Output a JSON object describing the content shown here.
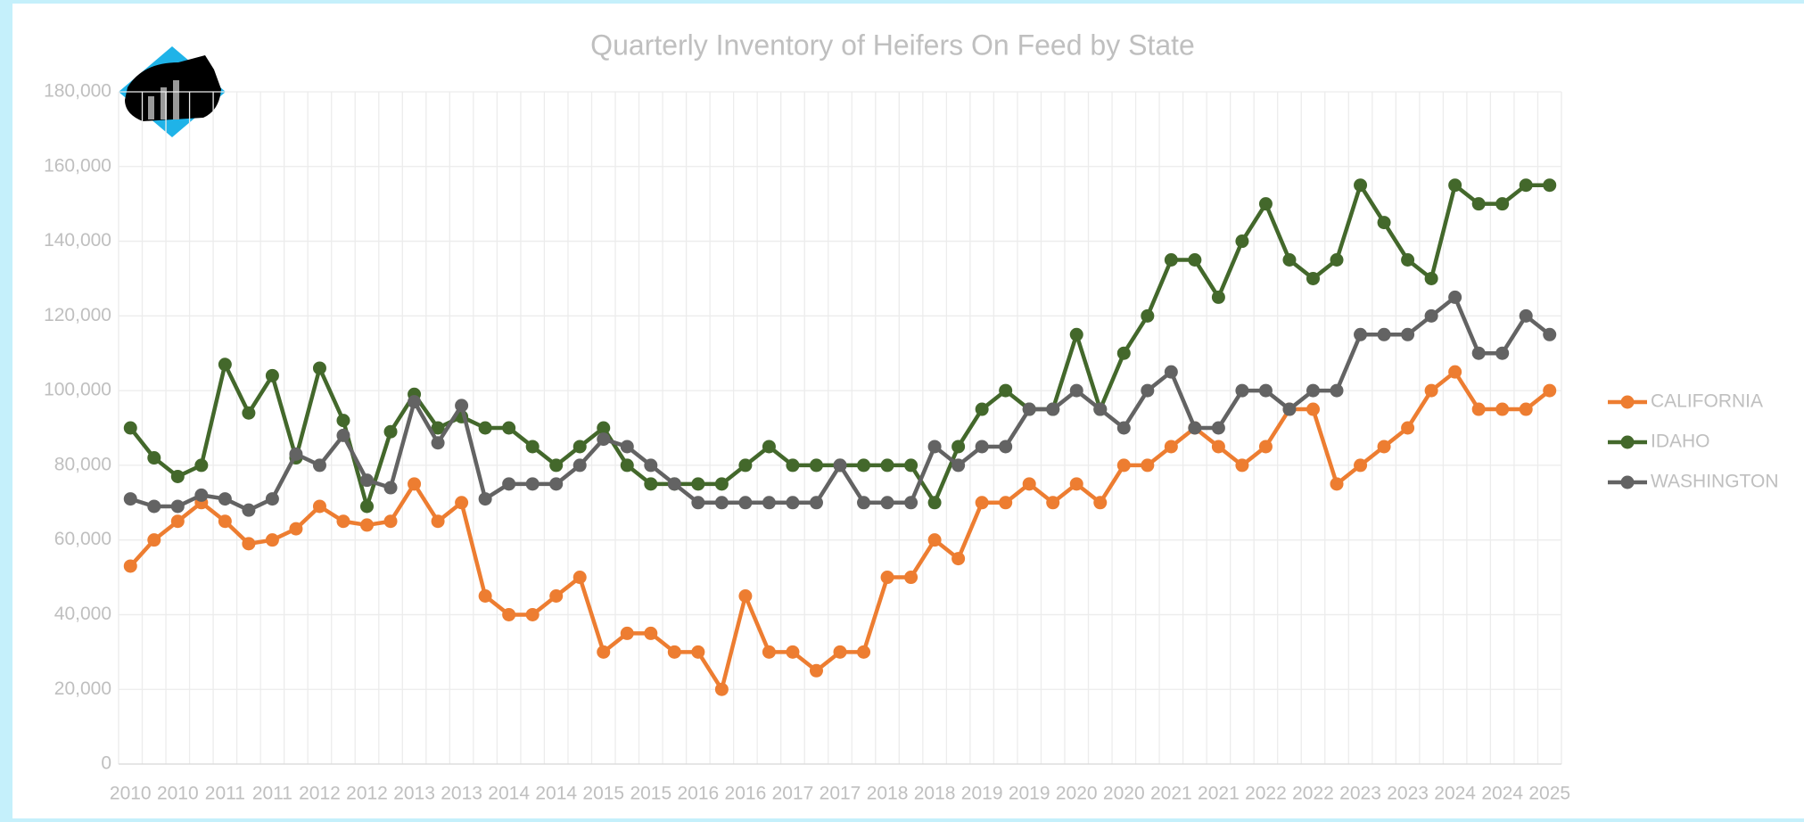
{
  "chart_data": {
    "type": "line",
    "title": "Quarterly Inventory of Heifers On Feed by State",
    "categories": [
      "2010",
      null,
      "2010",
      null,
      "2011",
      null,
      "2011",
      null,
      "2012",
      null,
      "2012",
      null,
      "2013",
      null,
      "2013",
      null,
      "2014",
      null,
      "2014",
      null,
      "2015",
      null,
      "2015",
      null,
      "2016",
      null,
      "2016",
      null,
      "2017",
      null,
      "2017",
      null,
      "2018",
      null,
      "2018",
      null,
      "2019",
      null,
      "2019",
      null,
      "2020",
      null,
      "2020",
      null,
      "2021",
      null,
      "2021",
      null,
      "2022",
      null,
      "2022",
      null,
      "2023",
      null,
      "2023",
      null,
      "2024",
      null,
      "2024",
      null,
      "2025"
    ],
    "series": [
      {
        "name": "CALIFORNIA",
        "color": "#ed7d31",
        "values": [
          53000,
          60000,
          65000,
          70000,
          65000,
          59000,
          60000,
          63000,
          69000,
          65000,
          64000,
          65000,
          75000,
          65000,
          70000,
          45000,
          40000,
          40000,
          45000,
          50000,
          30000,
          35000,
          35000,
          30000,
          30000,
          20000,
          45000,
          30000,
          30000,
          25000,
          30000,
          30000,
          50000,
          50000,
          60000,
          55000,
          70000,
          70000,
          75000,
          70000,
          75000,
          70000,
          80000,
          80000,
          85000,
          90000,
          85000,
          80000,
          85000,
          95000,
          95000,
          75000,
          80000,
          85000,
          90000,
          100000,
          105000,
          95000,
          95000,
          95000,
          100000
        ]
      },
      {
        "name": "IDAHO",
        "color": "#43682b",
        "values": [
          90000,
          82000,
          77000,
          80000,
          107000,
          94000,
          104000,
          82000,
          106000,
          92000,
          69000,
          89000,
          99000,
          90000,
          93000,
          90000,
          90000,
          85000,
          80000,
          85000,
          90000,
          80000,
          75000,
          75000,
          75000,
          75000,
          80000,
          85000,
          80000,
          80000,
          80000,
          80000,
          80000,
          80000,
          70000,
          85000,
          95000,
          100000,
          95000,
          95000,
          115000,
          95000,
          110000,
          120000,
          135000,
          135000,
          125000,
          140000,
          150000,
          135000,
          130000,
          135000,
          155000,
          145000,
          135000,
          130000,
          155000,
          150000,
          150000,
          155000,
          155000
        ]
      },
      {
        "name": "WASHINGTON",
        "color": "#636363",
        "values": [
          71000,
          69000,
          69000,
          72000,
          71000,
          68000,
          71000,
          83000,
          80000,
          88000,
          76000,
          74000,
          97000,
          86000,
          96000,
          71000,
          75000,
          75000,
          75000,
          80000,
          87000,
          85000,
          80000,
          75000,
          70000,
          70000,
          70000,
          70000,
          70000,
          70000,
          80000,
          70000,
          70000,
          70000,
          85000,
          80000,
          85000,
          85000,
          95000,
          95000,
          100000,
          95000,
          90000,
          100000,
          105000,
          90000,
          90000,
          100000,
          100000,
          95000,
          100000,
          100000,
          115000,
          115000,
          115000,
          120000,
          125000,
          110000,
          110000,
          120000,
          115000
        ]
      }
    ],
    "ylim": [
      0,
      180000
    ],
    "yticks": [
      0,
      {
        "value": 20000,
        "label": "20,000"
      },
      {
        "value": 40000,
        "label": "40,000"
      },
      {
        "value": 60000,
        "label": "60,000"
      },
      {
        "value": 80000,
        "label": "80,000"
      },
      {
        "value": 100000,
        "label": "100,000"
      },
      {
        "value": 120000,
        "label": "120,000"
      },
      {
        "value": 140000,
        "label": "140,000"
      },
      {
        "value": 160000,
        "label": "160,000"
      },
      {
        "value": 180000,
        "label": "180,000"
      }
    ],
    "grid": true,
    "legend": "right"
  }
}
